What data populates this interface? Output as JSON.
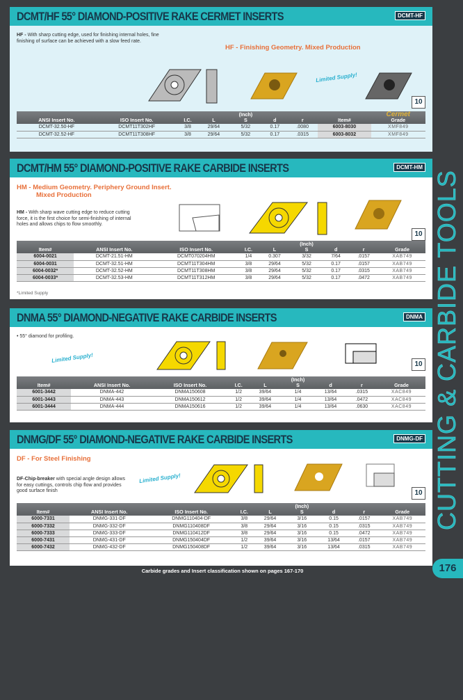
{
  "sections": [
    {
      "title": "DCMT/HF 55° DIAMOND-POSITIVE RAKE CERMET INSERTS",
      "tag": "DCMT-HF",
      "desc_label": "HF -",
      "desc": "With sharp cutting edge, used for finishing internal holes, fine finishing of surface can be achieved with a slow feed rate.",
      "subtitle": "HF - Finishing Geometry. Mixed Production",
      "limited": "Limited Supply!",
      "pkg": "10",
      "grade_group": "Cermet",
      "inch": "(Inch)",
      "headers": [
        "ANSI Insert No.",
        "ISO Insert No.",
        "I.C.",
        "L",
        "S",
        "d",
        "r",
        "Item#",
        "Grade"
      ],
      "rows": [
        [
          "DCMT-32.50-HF",
          "DCMT11T302HF",
          "3/8",
          "29/64",
          "5/32",
          "0.17",
          ".0080",
          "6003-8030",
          "XMF849"
        ],
        [
          "DCMT-32.52-HF",
          "DCMT11T308HF",
          "3/8",
          "29/64",
          "5/32",
          "0.17",
          ".0315",
          "6003-8032",
          "XMF849"
        ]
      ]
    },
    {
      "title": "DCMT/HM 55° DIAMOND-POSITIVE RAKE CARBIDE INSERTS",
      "tag": "DCMT-HM",
      "subtitle": "HM - Medium Geometry. Periphery Ground Insert.",
      "subtitle2": "Mixed Production",
      "desc_label": "HM -",
      "desc": "With sharp wave cutting edge to reduce cutting force, it is the first choice for semi-finishing of internal holes and allows chips to flow smoothly.",
      "pkg": "10",
      "inch": "(Inch)",
      "note": "*Limited Supply",
      "headers": [
        "Item#",
        "ANSI Insert No.",
        "ISO Insert No.",
        "I.C.",
        "L",
        "S",
        "d",
        "r",
        "Grade"
      ],
      "rows": [
        [
          "6004-0021",
          "DCMT-21.51-HM",
          "DCMT070204HM",
          "1/4",
          "0.307",
          "3/32",
          "7/64",
          ".0157",
          "XAB749"
        ],
        [
          "6004-0031",
          "DCMT-32.51-HM",
          "DCMT11T304HM",
          "3/8",
          "29/64",
          "5/32",
          "0.17",
          ".0157",
          "XAB749"
        ],
        [
          "6004-0032*",
          "DCMT-32.52-HM",
          "DCMT11T308HM",
          "3/8",
          "29/64",
          "5/32",
          "0.17",
          ".0315",
          "XAB749"
        ],
        [
          "6004-0033*",
          "DCMT-32.53-HM",
          "DCMT11T312HM",
          "3/8",
          "29/64",
          "5/32",
          "0.17",
          ".0472",
          "XAB749"
        ]
      ]
    },
    {
      "title": "DNMA 55°  DIAMOND-NEGATIVE RAKE CARBIDE INSERTS",
      "tag": "DNMA",
      "desc": "•  55° diamond for profiling.",
      "limited": "Limited Supply!",
      "pkg": "10",
      "inch": "(Inch)",
      "headers": [
        "Item#",
        "ANSI Insert No.",
        "ISO Insert No.",
        "I.C.",
        "L",
        "S",
        "d",
        "r",
        "Grade"
      ],
      "rows": [
        [
          "6001-3442",
          "DNMA-442",
          "DNMA150608",
          "1/2",
          "39/64",
          "1/4",
          "13/64",
          ".0315",
          "XAC849"
        ],
        [
          "6001-3443",
          "DNMA-443",
          "DNMA150612",
          "1/2",
          "39/64",
          "1/4",
          "13/64",
          ".0472",
          "XAC849"
        ],
        [
          "6001-3444",
          "DNMA-444",
          "DNMA150616",
          "1/2",
          "39/64",
          "1/4",
          "13/64",
          ".0630",
          "XAC849"
        ]
      ]
    },
    {
      "title": "DNMG/DF 55° DIAMOND-NEGATIVE RAKE CARBIDE INSERTS",
      "tag": "DNMG-DF",
      "subtitle": "DF - For Steel Finishing",
      "desc_label": "DF-Chip-breaker",
      "desc": "with special angle design allows for easy cuttings, controls chip flow and provides good surface finish",
      "limited": "Limited Supply!",
      "pkg": "10",
      "inch": "(Inch)",
      "headers": [
        "Item#",
        "ANSI Insert No.",
        "ISO Insert No.",
        "I.C.",
        "L",
        "S",
        "d",
        "r",
        "Grade"
      ],
      "rows": [
        [
          "6000-7331",
          "DNMG-331-DF",
          "DNMG110404-DF",
          "3/8",
          "29/64",
          "3/16",
          "0.15",
          ".0157",
          "XAB749"
        ],
        [
          "6000-7332",
          "DNMG-332-DF",
          "DNMG110408DF",
          "3/8",
          "29/64",
          "3/16",
          "0.15",
          ".0315",
          "XAB749"
        ],
        [
          "6000-7333",
          "DNMG-333-DF",
          "DNMG110412DF",
          "3/8",
          "29/64",
          "3/16",
          "0.15",
          ".0472",
          "XAB749"
        ],
        [
          "6000-7431",
          "DNMG-431-DF",
          "DNMG150404DF",
          "1/2",
          "39/64",
          "3/16",
          "13/64",
          ".0157",
          "XAB749"
        ],
        [
          "6000-7432",
          "DNMG-432-DF",
          "DNMG150408DF",
          "1/2",
          "39/64",
          "3/16",
          "13/64",
          ".0315",
          "XAB749"
        ]
      ]
    }
  ],
  "footer": "Carbide grades and Insert classification shown on pages 167-170",
  "page_number": "176",
  "side_title": "CUTTING & CARBIDE TOOLS",
  "colors": {
    "teal": "#27b8be",
    "navy": "#17384a",
    "insert_gold": "#d9a520",
    "orange": "#e8703a"
  }
}
